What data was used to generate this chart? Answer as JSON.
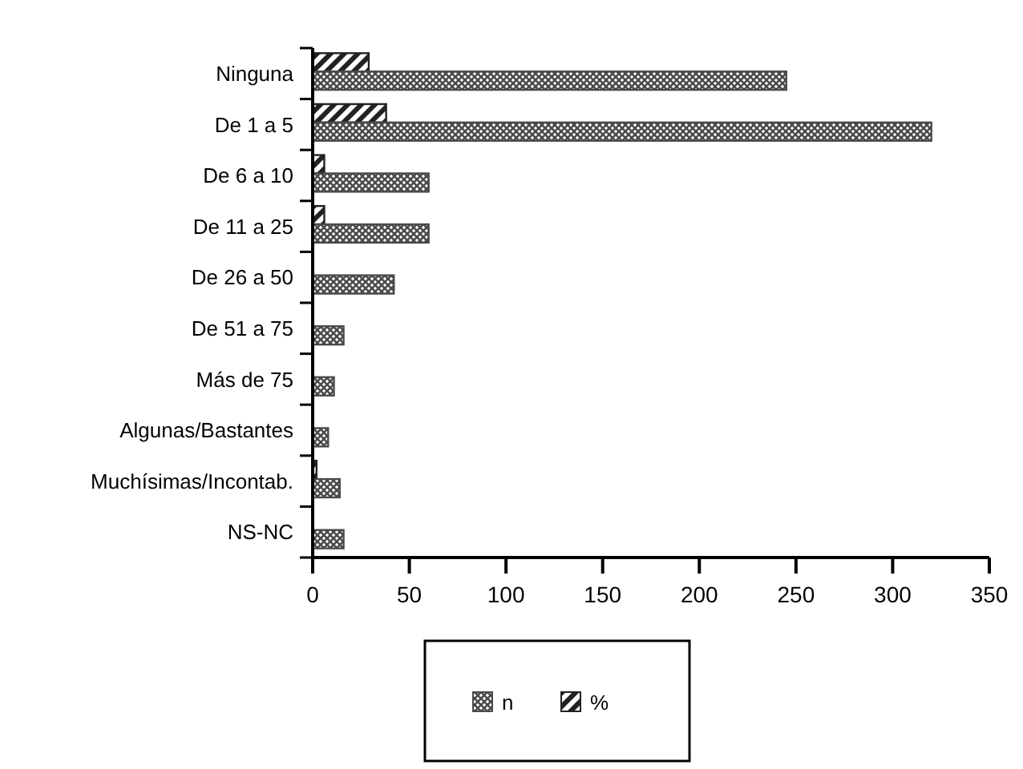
{
  "chart_data": {
    "type": "bar",
    "orientation": "horizontal",
    "categories": [
      "Ninguna",
      "De 1 a 5",
      "De 6 a 10",
      "De 11 a 25",
      "De 26 a 50",
      "De 51 a 75",
      "Más de 75",
      "Algunas/Bastantes",
      "Muchísimas/Incontab.",
      "NS-NC"
    ],
    "series": [
      {
        "name": "n",
        "color": "#4a4a4a",
        "values": [
          245,
          320,
          60,
          60,
          42,
          16,
          11,
          8,
          14,
          16
        ]
      },
      {
        "name": "%",
        "color": "#222222",
        "values": [
          29,
          38,
          6,
          6,
          null,
          null,
          null,
          null,
          2,
          null
        ]
      }
    ],
    "xlim": [
      0,
      350
    ],
    "xticks": [
      0,
      50,
      100,
      150,
      200,
      250,
      300,
      350
    ],
    "grid": false,
    "legend": "bottom"
  }
}
